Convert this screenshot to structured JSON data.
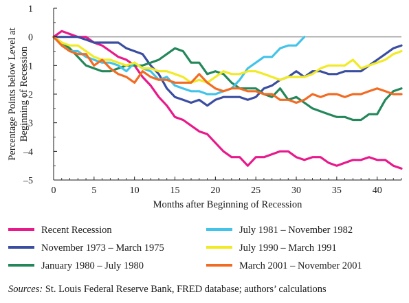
{
  "chart_data": {
    "type": "line",
    "xlabel": "Months after Beginning of Recession",
    "ylabel_lines": [
      "Percentage Points below Level at",
      "Beginning of Recession"
    ],
    "xlim": [
      0,
      43
    ],
    "ylim": [
      -5,
      1
    ],
    "x_ticks": [
      0,
      5,
      10,
      15,
      20,
      25,
      30,
      35,
      40
    ],
    "y_ticks": [
      1,
      0,
      -1,
      -2,
      -3,
      -4,
      -5
    ],
    "reference_line": 0,
    "grid": false,
    "legend_position": "bottom",
    "series": [
      {
        "name": "Recent Recession",
        "color": "#e8198b",
        "x": [
          0,
          1,
          2,
          3,
          4,
          5,
          6,
          7,
          8,
          9,
          10,
          11,
          12,
          13,
          14,
          15,
          16,
          17,
          18,
          19,
          20,
          21,
          22,
          23,
          24,
          25,
          26,
          27,
          28,
          29,
          30,
          31,
          32,
          33,
          34,
          35,
          36,
          37,
          38,
          39,
          40,
          41,
          42,
          43
        ],
        "values": [
          0,
          0.2,
          0.1,
          0,
          0,
          -0.2,
          -0.3,
          -0.5,
          -0.7,
          -0.8,
          -1,
          -1.4,
          -1.7,
          -2.1,
          -2.4,
          -2.8,
          -2.9,
          -3.1,
          -3.3,
          -3.4,
          -3.7,
          -4,
          -4.2,
          -4.2,
          -4.5,
          -4.2,
          -4.2,
          -4.1,
          -4,
          -4,
          -4.2,
          -4.3,
          -4.2,
          -4.2,
          -4.4,
          -4.5,
          -4.4,
          -4.3,
          -4.3,
          -4.2,
          -4.3,
          -4.3,
          -4.5,
          -4.6
        ]
      },
      {
        "name": "November 1973 – March 1975",
        "color": "#3a4da0",
        "x": [
          0,
          1,
          2,
          3,
          4,
          5,
          6,
          7,
          8,
          9,
          10,
          11,
          12,
          13,
          14,
          15,
          16,
          17,
          18,
          19,
          20,
          21,
          22,
          23,
          24,
          25,
          26,
          27,
          28,
          29,
          30,
          31,
          32,
          33,
          34,
          35,
          36,
          37,
          38,
          39,
          40,
          41,
          42,
          43
        ],
        "values": [
          0,
          0,
          0,
          0,
          -0.1,
          -0.2,
          -0.2,
          -0.2,
          -0.2,
          -0.4,
          -0.5,
          -0.6,
          -1,
          -1.3,
          -1.8,
          -2.1,
          -2.2,
          -2.3,
          -2.2,
          -2.4,
          -2.2,
          -2.1,
          -2.1,
          -2.1,
          -2.2,
          -2.1,
          -1.8,
          -1.7,
          -1.5,
          -1.4,
          -1.2,
          -1.4,
          -1.2,
          -1.2,
          -1.3,
          -1.3,
          -1.2,
          -1.2,
          -1.2,
          -1,
          -0.8,
          -0.6,
          -0.4,
          -0.3
        ]
      },
      {
        "name": "January 1980 – July 1980",
        "color": "#23875a",
        "x": [
          0,
          1,
          2,
          3,
          4,
          5,
          6,
          7,
          8,
          9,
          10,
          11,
          12,
          13,
          14,
          15,
          16,
          17,
          18,
          19,
          20,
          21,
          22,
          23,
          24,
          25,
          26,
          27,
          28,
          29,
          30,
          31,
          32,
          33,
          34,
          35,
          36,
          37,
          38,
          39,
          40,
          41,
          42,
          43
        ],
        "values": [
          0,
          -0.2,
          -0.4,
          -0.7,
          -1,
          -1.1,
          -1.2,
          -1.2,
          -1.1,
          -1,
          -1,
          -1,
          -0.9,
          -0.8,
          -0.6,
          -0.4,
          -0.5,
          -0.9,
          -0.9,
          -1.3,
          -1.2,
          -1.3,
          -1.6,
          -1.8,
          -1.8,
          -1.8,
          -2,
          -2.1,
          -1.8,
          -2.2,
          -2.1,
          -2.3,
          -2.5,
          -2.6,
          -2.7,
          -2.8,
          -2.8,
          -2.9,
          -2.9,
          -2.7,
          -2.7,
          -2.2,
          -1.9,
          -1.8
        ]
      },
      {
        "name": "July 1981 – November 1982",
        "color": "#41c3ea",
        "x": [
          0,
          1,
          2,
          3,
          4,
          5,
          6,
          7,
          8,
          9,
          10,
          11,
          12,
          13,
          14,
          15,
          16,
          17,
          18,
          19,
          20,
          21,
          22,
          23,
          24,
          25,
          26,
          27,
          28,
          29,
          30,
          31
        ],
        "values": [
          0,
          -0.3,
          -0.5,
          -0.5,
          -0.7,
          -0.8,
          -0.9,
          -0.9,
          -1,
          -1.2,
          -0.9,
          -1.1,
          -1.2,
          -1.5,
          -1.4,
          -1.7,
          -1.8,
          -1.9,
          -1.9,
          -2,
          -2,
          -1.9,
          -1.8,
          -1.5,
          -1.1,
          -0.9,
          -0.7,
          -0.7,
          -0.4,
          -0.3,
          -0.3,
          0
        ]
      },
      {
        "name": "July 1990 – March 1991",
        "color": "#f1ea25",
        "x": [
          0,
          1,
          2,
          3,
          4,
          5,
          6,
          7,
          8,
          9,
          10,
          11,
          12,
          13,
          14,
          15,
          16,
          17,
          18,
          19,
          20,
          21,
          22,
          23,
          24,
          25,
          26,
          27,
          28,
          29,
          30,
          31,
          32,
          33,
          34,
          35,
          36,
          37,
          38,
          39,
          40,
          41,
          42,
          43
        ],
        "values": [
          0,
          -0.2,
          -0.3,
          -0.3,
          -0.5,
          -0.7,
          -0.8,
          -0.8,
          -0.9,
          -1,
          -0.9,
          -1.1,
          -1.1,
          -1.2,
          -1.2,
          -1.3,
          -1.4,
          -1.6,
          -1.5,
          -1.6,
          -1.4,
          -1.2,
          -1.3,
          -1.3,
          -1.2,
          -1.2,
          -1.3,
          -1.4,
          -1.5,
          -1.4,
          -1.4,
          -1.4,
          -1.3,
          -1.1,
          -1,
          -1,
          -1,
          -0.8,
          -1.1,
          -1,
          -0.9,
          -0.8,
          -0.6,
          -0.5
        ]
      },
      {
        "name": "March 2001 – November 2001",
        "color": "#f26b22",
        "x": [
          0,
          1,
          2,
          3,
          4,
          5,
          6,
          7,
          8,
          9,
          10,
          11,
          12,
          13,
          14,
          15,
          16,
          17,
          18,
          19,
          20,
          21,
          22,
          23,
          24,
          25,
          26,
          27,
          28,
          29,
          30,
          31,
          32,
          33,
          34,
          35,
          36,
          37,
          38,
          39,
          40,
          41,
          42,
          43
        ],
        "values": [
          0,
          -0.3,
          -0.5,
          -0.6,
          -0.6,
          -1,
          -0.8,
          -1.1,
          -1.3,
          -1.4,
          -1.6,
          -1.2,
          -1.4,
          -1.5,
          -1.5,
          -1.6,
          -1.6,
          -1.6,
          -1.3,
          -1.6,
          -1.8,
          -1.9,
          -1.8,
          -1.8,
          -1.9,
          -1.9,
          -2,
          -2,
          -2.2,
          -2.2,
          -2.3,
          -2.2,
          -2,
          -2.1,
          -2,
          -2,
          -2.1,
          -2,
          -2,
          -1.9,
          -1.8,
          -1.9,
          -2,
          -2
        ]
      }
    ]
  },
  "footer": {
    "sources_label": "Sources:",
    "sources_text": " St. Louis Federal Reserve Bank, FRED database; authors’ calculations"
  }
}
